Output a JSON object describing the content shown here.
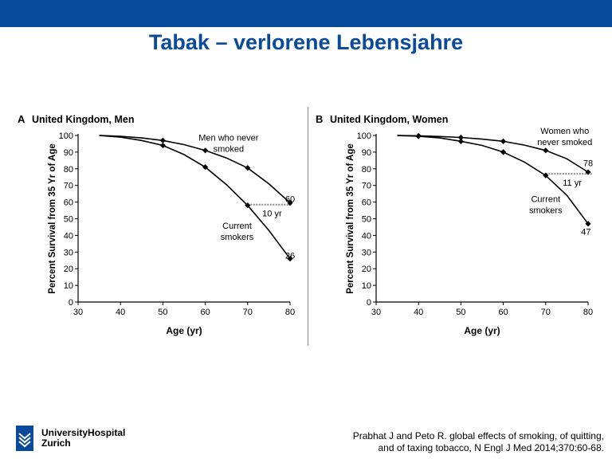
{
  "colors": {
    "topbar": "#0a4a9b",
    "title": "#0a4a9b",
    "ink": "#000000",
    "gap": "#888888"
  },
  "slide": {
    "title": "Tabak – verlorene Lebensjahre",
    "logo": {
      "line1": "UniversityHospital",
      "line2": "Zurich",
      "icon": "university-hospital-logo-icon"
    },
    "citation": {
      "line1": "Prabhat J and  Peto R. global effects of smoking, of quitting,",
      "line2": "and of taxing tobacco, N Engl J Med 2014;370:60-68."
    }
  },
  "chart_data": [
    {
      "type": "line",
      "panel_letter": "A",
      "title": "United Kingdom, Men",
      "xlabel": "Age (yr)",
      "ylabel": "Percent Survival from 35 Yr of Age",
      "xlim": [
        30,
        80
      ],
      "ylim": [
        0,
        100
      ],
      "xticks": [
        30,
        40,
        50,
        60,
        70,
        80
      ],
      "yticks": [
        0,
        10,
        20,
        30,
        40,
        50,
        60,
        70,
        80,
        90,
        100
      ],
      "grid": false,
      "series": [
        {
          "name": "Men who never smoked",
          "line_x": [
            35,
            40,
            45,
            50,
            55,
            60,
            65,
            70,
            75,
            80
          ],
          "line_y": [
            100,
            99.5,
            98.5,
            97,
            94.5,
            91,
            86.5,
            80.5,
            71,
            59.5
          ],
          "marker_x": [
            50,
            60,
            70,
            80
          ],
          "marker_y": [
            97,
            91,
            80.5,
            59.5
          ]
        },
        {
          "name": "Current smokers",
          "line_x": [
            35,
            40,
            45,
            50,
            55,
            60,
            65,
            70,
            75,
            80
          ],
          "line_y": [
            100,
            99,
            97,
            94,
            88.5,
            81,
            70.5,
            58,
            43,
            26
          ],
          "marker_x": [
            50,
            60,
            70,
            80
          ],
          "marker_y": [
            94,
            81,
            58,
            26
          ]
        }
      ],
      "gap": {
        "x_from": 70,
        "x_to": 80,
        "y": 58.5,
        "label": "10 yr"
      },
      "annotations": [
        {
          "text": "60",
          "x": 80,
          "y": 60
        },
        {
          "text": "26",
          "x": 80,
          "y": 26
        },
        {
          "text_lines": [
            "Men who never",
            "smoked"
          ],
          "x": 65.5,
          "y": 97
        },
        {
          "text_lines": [
            "Current",
            "smokers"
          ],
          "x": 67.5,
          "y": 44
        }
      ]
    },
    {
      "type": "line",
      "panel_letter": "B",
      "title": "United Kingdom, Women",
      "xlabel": "Age (yr)",
      "ylabel": "Percent Survival from 35 Yr of Age",
      "xlim": [
        30,
        80
      ],
      "ylim": [
        0,
        100
      ],
      "xticks": [
        30,
        40,
        50,
        60,
        70,
        80
      ],
      "yticks": [
        0,
        10,
        20,
        30,
        40,
        50,
        60,
        70,
        80,
        90,
        100
      ],
      "grid": false,
      "series": [
        {
          "name": "Women who never smoked",
          "line_x": [
            35,
            40,
            45,
            50,
            55,
            60,
            65,
            70,
            75,
            80
          ],
          "line_y": [
            100,
            99.8,
            99.4,
            98.8,
            97.8,
            96.5,
            94.2,
            91,
            86,
            78
          ],
          "marker_x": [
            40,
            50,
            60,
            70,
            80
          ],
          "marker_y": [
            99.8,
            98.8,
            96.5,
            91,
            78
          ]
        },
        {
          "name": "Current smokers",
          "line_x": [
            35,
            40,
            45,
            50,
            55,
            60,
            65,
            70,
            75,
            80
          ],
          "line_y": [
            100,
            99.5,
            98.5,
            96.5,
            94,
            90,
            84,
            76,
            64,
            47
          ],
          "marker_x": [
            40,
            50,
            60,
            70,
            80
          ],
          "marker_y": [
            99.5,
            96.5,
            90,
            76,
            47
          ]
        }
      ],
      "gap": {
        "x_from": 70,
        "x_to": 81,
        "y": 77,
        "label": "11 yr"
      },
      "annotations": [
        {
          "text": "78",
          "x": 80,
          "y": 81.5
        },
        {
          "text": "47",
          "x": 79.5,
          "y": 40.5
        },
        {
          "text_lines": [
            "Women who",
            "never smoked"
          ],
          "x": 74.5,
          "y": 101
        },
        {
          "text_lines": [
            "Current",
            "smokers"
          ],
          "x": 70,
          "y": 60
        }
      ]
    }
  ]
}
